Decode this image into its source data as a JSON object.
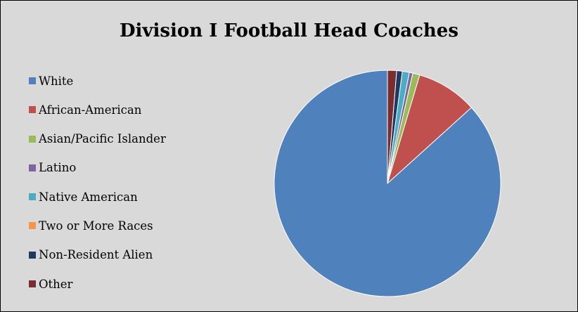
{
  "chart_data": {
    "type": "pie",
    "title": "Division I Football Head Coaches",
    "legend_position": "left",
    "slices": [
      {
        "label": "White",
        "value": 86.7,
        "color": "#4f81bd"
      },
      {
        "label": "African-American",
        "value": 8.7,
        "color": "#c0504d"
      },
      {
        "label": "Asian/Pacific Islander",
        "value": 1.0,
        "color": "#9bbb59"
      },
      {
        "label": "Latino",
        "value": 0.5,
        "color": "#8064a2"
      },
      {
        "label": "Native American",
        "value": 1.0,
        "color": "#4bacc6"
      },
      {
        "label": "Two or More Races",
        "value": 0.0,
        "color": "#f79646"
      },
      {
        "label": "Non-Resident Alien",
        "value": 0.8,
        "color": "#1f3864"
      },
      {
        "label": "Other",
        "value": 1.3,
        "color": "#7b2c2c"
      }
    ]
  }
}
